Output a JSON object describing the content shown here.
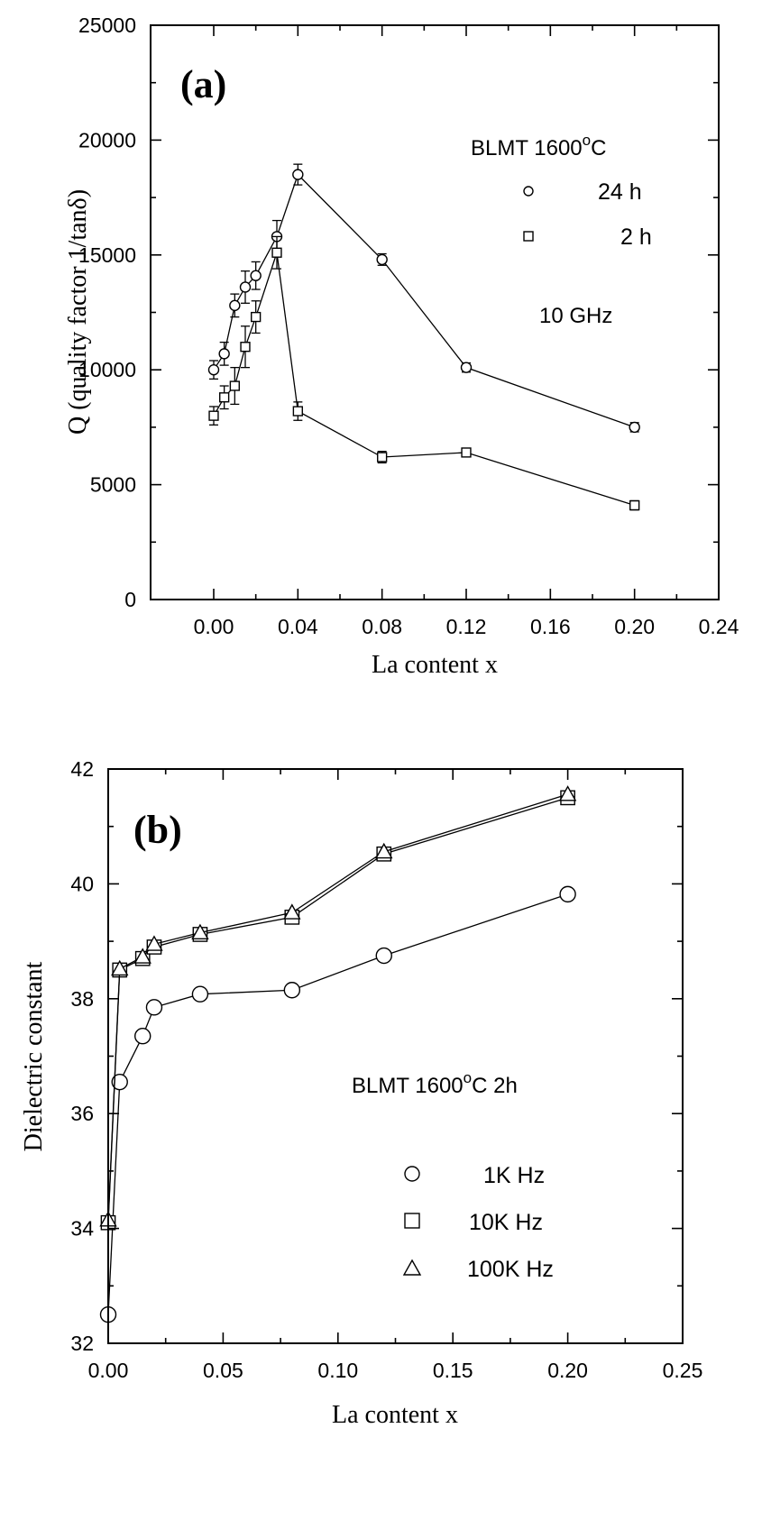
{
  "chart_data": [
    {
      "type": "scatter",
      "panel_label": "(a)",
      "xlabel": "La content  x",
      "ylabel": "Q (quality factor 1/tanδ)",
      "xlim": [
        -0.03,
        0.24
      ],
      "ylim": [
        0,
        25000
      ],
      "xticks": [
        0.0,
        0.04,
        0.08,
        0.12,
        0.16,
        0.2,
        0.24
      ],
      "xtick_labels": [
        "0.00",
        "0.04",
        "0.08",
        "0.12",
        "0.16",
        "0.20",
        "0.24"
      ],
      "yticks": [
        0,
        5000,
        10000,
        15000,
        20000,
        25000
      ],
      "ytick_labels": [
        "0",
        "5000",
        "10000",
        "15000",
        "20000",
        "25000"
      ],
      "annotations": [
        "BLMT 1600",
        "o",
        "C",
        "10 GHz"
      ],
      "legend_position": "top-right",
      "series": [
        {
          "name": "24 h",
          "marker": "circle",
          "x": [
            0.0,
            0.005,
            0.01,
            0.015,
            0.02,
            0.03,
            0.04,
            0.08,
            0.12,
            0.2
          ],
          "y": [
            10000,
            10700,
            12800,
            13600,
            14100,
            15800,
            18500,
            14800,
            10100,
            7500
          ],
          "err": [
            400,
            500,
            500,
            700,
            600,
            700,
            450,
            250,
            200,
            200
          ]
        },
        {
          "name": "2 h",
          "marker": "square",
          "x": [
            0.0,
            0.005,
            0.01,
            0.015,
            0.02,
            0.03,
            0.04,
            0.08,
            0.12,
            0.2
          ],
          "y": [
            8000,
            8800,
            9300,
            11000,
            12300,
            15100,
            8200,
            6200,
            6400,
            4100
          ],
          "err": [
            400,
            500,
            800,
            900,
            700,
            700,
            400,
            250,
            150,
            200
          ]
        }
      ]
    },
    {
      "type": "line",
      "panel_label": "(b)",
      "xlabel": "La content x",
      "ylabel": "Dielectric constant",
      "xlim": [
        0.0,
        0.25
      ],
      "ylim": [
        32,
        42
      ],
      "xticks": [
        0.0,
        0.05,
        0.1,
        0.15,
        0.2,
        0.25
      ],
      "xtick_labels": [
        "0.00",
        "0.05",
        "0.10",
        "0.15",
        "0.20",
        "0.25"
      ],
      "yticks": [
        32,
        34,
        36,
        38,
        40,
        42
      ],
      "ytick_labels": [
        "32",
        "34",
        "36",
        "38",
        "40",
        "42"
      ],
      "annotations": [
        "BLMT 1600",
        "o",
        "C 2h"
      ],
      "legend_position": "lower-right",
      "series": [
        {
          "name": "1K Hz",
          "marker": "circle",
          "x": [
            0.0,
            0.005,
            0.015,
            0.02,
            0.04,
            0.08,
            0.12,
            0.2
          ],
          "y": [
            32.5,
            36.55,
            37.35,
            37.85,
            38.08,
            38.15,
            38.75,
            39.82
          ]
        },
        {
          "name": "10K Hz",
          "marker": "square",
          "x": [
            0.0,
            0.005,
            0.015,
            0.02,
            0.04,
            0.08,
            0.12,
            0.2
          ],
          "y": [
            34.1,
            38.5,
            38.7,
            38.9,
            39.12,
            39.42,
            40.52,
            41.5
          ]
        },
        {
          "name": "100K Hz",
          "marker": "triangle",
          "x": [
            0.0,
            0.005,
            0.015,
            0.02,
            0.04,
            0.08,
            0.12,
            0.2
          ],
          "y": [
            34.15,
            38.52,
            38.73,
            38.95,
            39.15,
            39.5,
            40.56,
            41.56
          ]
        }
      ]
    }
  ]
}
